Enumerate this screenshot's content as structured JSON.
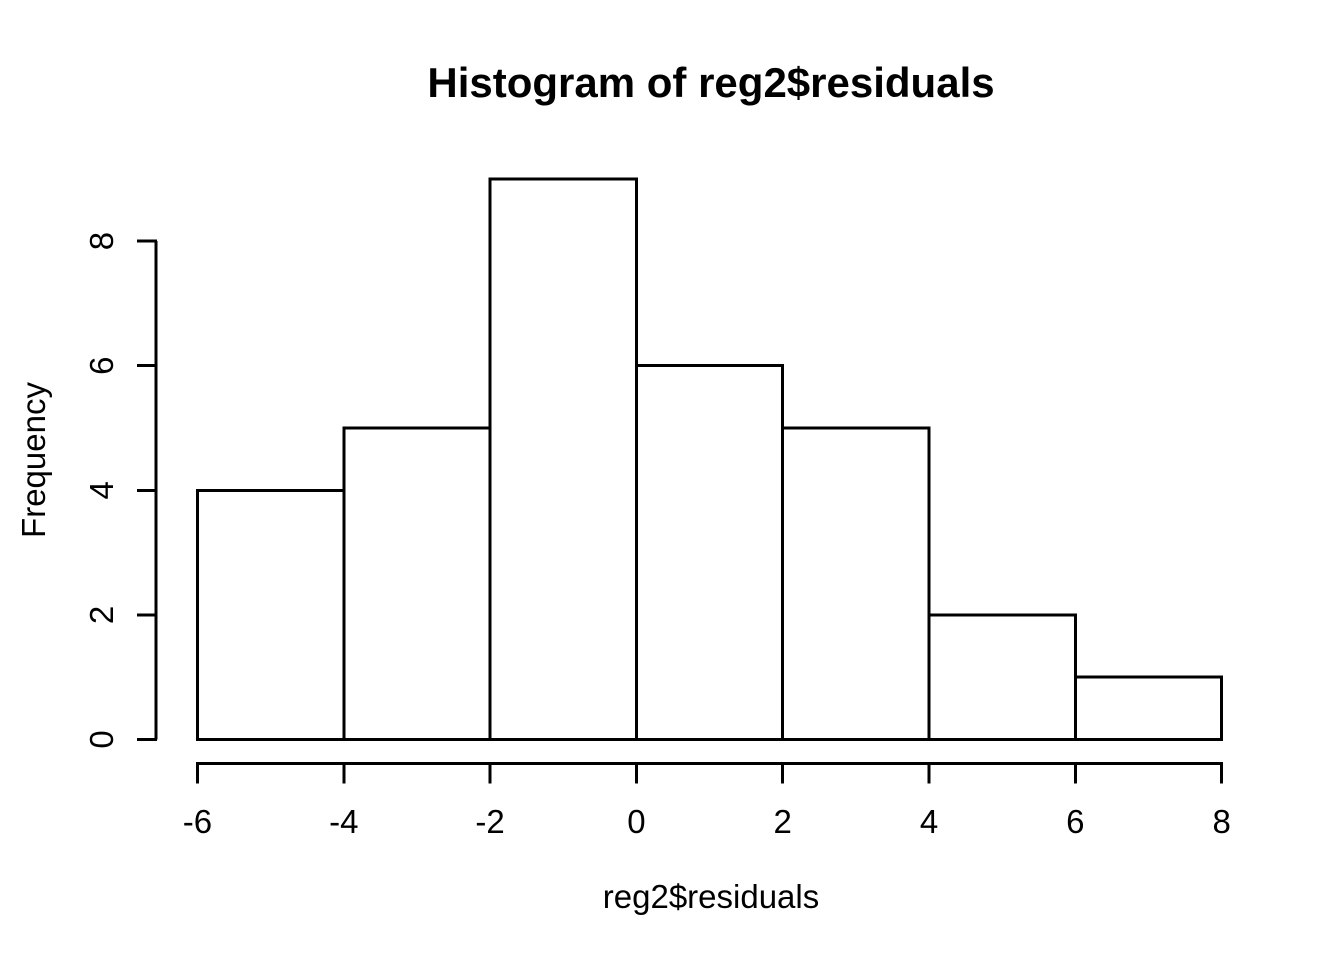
{
  "chart_data": {
    "type": "bar",
    "variant": "histogram",
    "title": "Histogram of reg2$residuals",
    "xlabel": "reg2$residuals",
    "ylabel": "Frequency",
    "breaks": [
      -6,
      -4,
      -2,
      0,
      2,
      4,
      6,
      8
    ],
    "counts": [
      4,
      5,
      9,
      6,
      5,
      2,
      1
    ],
    "x_ticks": [
      -6,
      -4,
      -2,
      0,
      2,
      4,
      6,
      8
    ],
    "x_tick_labels": [
      "-6",
      "-4",
      "-2",
      "0",
      "2",
      "4",
      "6",
      "8"
    ],
    "y_ticks": [
      0,
      2,
      4,
      6,
      8
    ],
    "y_tick_labels": [
      "0",
      "2",
      "4",
      "6",
      "8"
    ],
    "xlim": [
      -6,
      8
    ],
    "ylim": [
      0,
      9
    ],
    "grid": false,
    "legend": "none",
    "colors": {
      "bar_fill": "#ffffff",
      "stroke": "#000000",
      "background": "#ffffff",
      "text": "#000000"
    }
  }
}
